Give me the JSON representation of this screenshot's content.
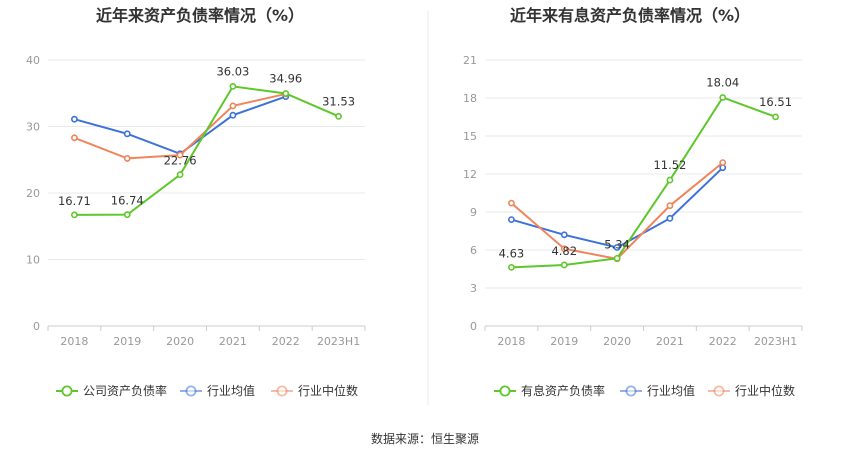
{
  "source_label": "数据来源：恒生聚源",
  "chart_data": [
    {
      "type": "line",
      "title": "近年来资产负债率情况（%）",
      "categories": [
        "2018",
        "2019",
        "2020",
        "2021",
        "2022",
        "2023H1"
      ],
      "yticks": [
        "0",
        "10",
        "20",
        "30",
        "40"
      ],
      "ylim": [
        0,
        40
      ],
      "grid": true,
      "legend_position": "bottom",
      "series": [
        {
          "name": "公司资产负债率",
          "color": "#5dc72b",
          "values": [
            16.71,
            16.74,
            22.76,
            36.03,
            34.96,
            31.53
          ],
          "labels": [
            "16.71",
            "16.74",
            "22.76",
            "36.03",
            "34.96",
            "31.53"
          ]
        },
        {
          "name": "行业均值",
          "color": "#3d72d8",
          "values": [
            31.1,
            28.9,
            25.9,
            31.7,
            34.5,
            null
          ]
        },
        {
          "name": "行业中位数",
          "color": "#f0855c",
          "values": [
            28.3,
            25.2,
            25.7,
            33.1,
            34.9,
            null
          ]
        }
      ]
    },
    {
      "type": "line",
      "title": "近年来有息资产负债率情况（%）",
      "categories": [
        "2018",
        "2019",
        "2020",
        "2021",
        "2022",
        "2023H1"
      ],
      "yticks": [
        "0",
        "3",
        "6",
        "9",
        "12",
        "15",
        "18",
        "21"
      ],
      "ylim": [
        0,
        21
      ],
      "grid": true,
      "legend_position": "bottom",
      "series": [
        {
          "name": "有息资产负债率",
          "color": "#5dc72b",
          "values": [
            4.63,
            4.82,
            5.34,
            11.52,
            18.04,
            16.51
          ],
          "labels": [
            "4.63",
            "4.82",
            "5.34",
            "11.52",
            "18.04",
            "16.51"
          ]
        },
        {
          "name": "行业均值",
          "color": "#3d72d8",
          "values": [
            8.4,
            7.2,
            6.2,
            8.5,
            12.5,
            null
          ]
        },
        {
          "name": "行业中位数",
          "color": "#f0855c",
          "values": [
            9.7,
            6.1,
            5.3,
            9.5,
            12.9,
            null
          ]
        }
      ]
    }
  ]
}
